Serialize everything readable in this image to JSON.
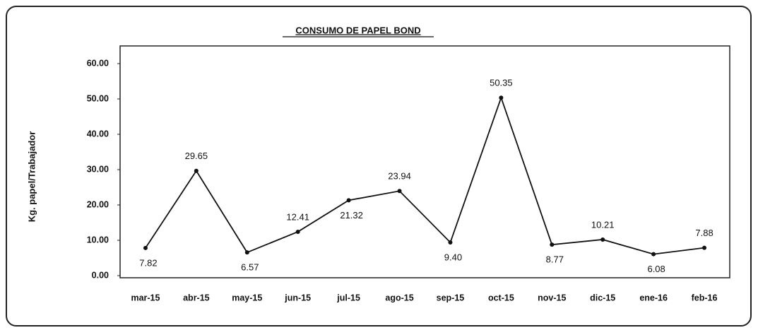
{
  "chart_data": {
    "type": "line",
    "title": "CONSUMO DE PAPEL BOND",
    "ylabel": "Kg. papel/Trabajador",
    "categories": [
      "mar-15",
      "abr-15",
      "may-15",
      "jun-15",
      "jul-15",
      "ago-15",
      "sep-15",
      "oct-15",
      "nov-15",
      "dic-15",
      "ene-16",
      "feb-16"
    ],
    "series": [
      {
        "name": "Kg. papel/Trabajador",
        "color": "#111111",
        "values": [
          7.82,
          29.65,
          6.57,
          12.41,
          21.32,
          23.94,
          9.4,
          50.35,
          8.77,
          10.21,
          6.08,
          7.88
        ],
        "value_labels": [
          "7.82",
          "29.65",
          "6.57",
          "12.41",
          "21.32",
          "23.94",
          "9.40",
          "50.35",
          "8.77",
          "10.21",
          "6.08",
          "7.88"
        ]
      }
    ],
    "ylim": [
      0,
      65
    ],
    "yticks": [
      {
        "value": 0,
        "label": "0.00"
      },
      {
        "value": 10,
        "label": "10.00"
      },
      {
        "value": 20,
        "label": "20.00"
      },
      {
        "value": 30,
        "label": "30.00"
      },
      {
        "value": 40,
        "label": "40.00"
      },
      {
        "value": 50,
        "label": "50.00"
      },
      {
        "value": 60,
        "label": "60.00"
      }
    ],
    "grid": false
  }
}
